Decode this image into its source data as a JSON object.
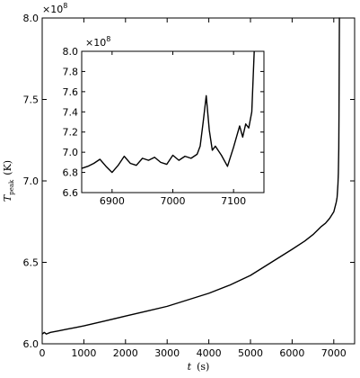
{
  "chart_data": [
    {
      "id": "main",
      "type": "line",
      "xlabel_symbol": "t",
      "xlabel_unit": "(s)",
      "ylabel_symbol": "T",
      "ylabel_subscript": "peak",
      "ylabel_unit": "(K)",
      "y_offset_label": "×10",
      "y_offset_exponent": "8",
      "xlim": [
        0,
        7500
      ],
      "ylim": [
        6.0,
        8.0
      ],
      "xticks": [
        0,
        1000,
        2000,
        3000,
        4000,
        5000,
        6000,
        7000
      ],
      "xtick_labels": [
        "0",
        "1000",
        "2000",
        "3000",
        "4000",
        "5000",
        "6000",
        "7000"
      ],
      "yticks": [
        6.0,
        6.5,
        7.0,
        7.5,
        8.0
      ],
      "ytick_labels": [
        "6.0",
        "6.5",
        "7.0",
        "7.5",
        "8.0"
      ],
      "series": [
        {
          "x": [
            0,
            50,
            100,
            200,
            400,
            600,
            800,
            1000,
            1500,
            2000,
            2500,
            3000,
            3500,
            4000,
            4500,
            5000,
            5500,
            6000,
            6300,
            6500,
            6700,
            6800,
            6900,
            6950,
            7000,
            7040,
            7060,
            7080,
            7100,
            7110,
            7120,
            7125,
            7130,
            7135,
            7140
          ],
          "y": [
            6.06,
            6.07,
            6.06,
            6.07,
            6.08,
            6.09,
            6.1,
            6.11,
            6.14,
            6.17,
            6.2,
            6.23,
            6.27,
            6.31,
            6.36,
            6.42,
            6.5,
            6.58,
            6.63,
            6.67,
            6.72,
            6.74,
            6.77,
            6.79,
            6.81,
            6.85,
            6.87,
            6.9,
            6.98,
            7.05,
            7.2,
            7.4,
            7.7,
            8.0,
            8.0
          ]
        }
      ]
    },
    {
      "id": "inset",
      "type": "line",
      "y_offset_label": "×10",
      "y_offset_exponent": "8",
      "xlim": [
        6850,
        7150
      ],
      "ylim": [
        6.6,
        8.0
      ],
      "xticks": [
        6900,
        7000,
        7100
      ],
      "xtick_labels": [
        "6900",
        "7000",
        "7100"
      ],
      "yticks": [
        6.6,
        6.8,
        7.0,
        7.2,
        7.4,
        7.6,
        7.8,
        8.0
      ],
      "ytick_labels": [
        "6.6",
        "6.8",
        "7.0",
        "7.2",
        "7.4",
        "7.6",
        "7.8",
        "8.0"
      ],
      "series": [
        {
          "x": [
            6850,
            6860,
            6870,
            6880,
            6890,
            6900,
            6910,
            6920,
            6930,
            6940,
            6950,
            6960,
            6970,
            6980,
            6990,
            7000,
            7010,
            7020,
            7030,
            7040,
            7045,
            7050,
            7055,
            7060,
            7065,
            7070,
            7080,
            7090,
            7100,
            7110,
            7115,
            7120,
            7125,
            7130,
            7132,
            7134
          ],
          "y": [
            6.84,
            6.86,
            6.89,
            6.93,
            6.86,
            6.8,
            6.87,
            6.96,
            6.89,
            6.87,
            6.94,
            6.92,
            6.95,
            6.9,
            6.88,
            6.97,
            6.92,
            6.96,
            6.94,
            6.98,
            7.06,
            7.3,
            7.56,
            7.22,
            7.02,
            7.06,
            6.97,
            6.86,
            7.05,
            7.26,
            7.15,
            7.28,
            7.24,
            7.4,
            7.7,
            8.0
          ]
        }
      ]
    }
  ]
}
